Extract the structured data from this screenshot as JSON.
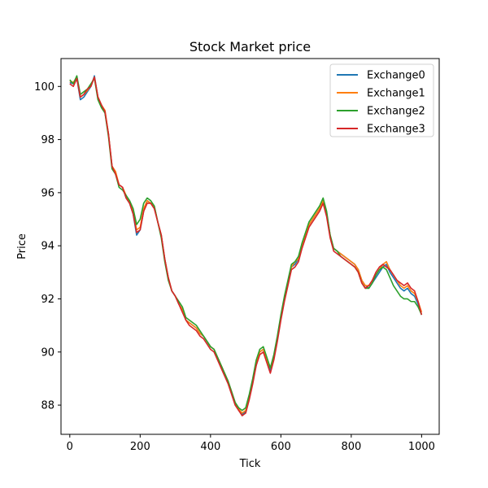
{
  "chart_data": {
    "type": "line",
    "title": "Stock Market price",
    "xlabel": "Tick",
    "ylabel": "Price",
    "xlim": [
      -25,
      1050
    ],
    "ylim": [
      86.9,
      101.05
    ],
    "xticks": [
      0,
      200,
      400,
      600,
      800,
      1000
    ],
    "yticks": [
      88,
      90,
      92,
      94,
      96,
      98,
      100
    ],
    "grid": false,
    "legend_position": "top-right",
    "x": [
      0,
      10,
      20,
      30,
      40,
      50,
      60,
      70,
      80,
      90,
      100,
      110,
      120,
      130,
      140,
      150,
      160,
      170,
      180,
      190,
      200,
      210,
      220,
      230,
      240,
      250,
      260,
      270,
      280,
      290,
      300,
      310,
      320,
      330,
      340,
      350,
      360,
      370,
      380,
      390,
      400,
      410,
      420,
      430,
      440,
      450,
      460,
      470,
      480,
      490,
      500,
      510,
      520,
      530,
      540,
      550,
      560,
      570,
      580,
      590,
      600,
      610,
      620,
      630,
      640,
      650,
      660,
      670,
      680,
      690,
      700,
      710,
      720,
      730,
      740,
      750,
      760,
      770,
      780,
      790,
      800,
      810,
      820,
      830,
      840,
      850,
      860,
      870,
      880,
      890,
      900,
      910,
      920,
      930,
      940,
      950,
      960,
      970,
      980,
      990,
      1000
    ],
    "series": [
      {
        "name": "Exchange0",
        "color": "#1f77b4",
        "values": [
          100.15,
          100.1,
          100.3,
          99.5,
          99.6,
          99.8,
          100.0,
          100.4,
          99.6,
          99.3,
          99.0,
          98.2,
          97.0,
          96.7,
          96.3,
          96.2,
          95.8,
          95.6,
          95.2,
          94.4,
          94.6,
          95.3,
          95.7,
          95.6,
          95.5,
          94.9,
          94.4,
          93.5,
          92.8,
          92.3,
          92.1,
          91.8,
          91.6,
          91.2,
          91.1,
          91.0,
          90.9,
          90.7,
          90.6,
          90.4,
          90.2,
          90.1,
          89.8,
          89.5,
          89.2,
          88.9,
          88.5,
          88.1,
          87.8,
          87.65,
          87.75,
          88.3,
          88.9,
          89.5,
          90.0,
          90.1,
          89.7,
          89.3,
          89.8,
          90.5,
          91.3,
          92.0,
          92.6,
          93.2,
          93.3,
          93.5,
          94.0,
          94.4,
          94.8,
          95.0,
          95.2,
          95.4,
          95.7,
          95.2,
          94.4,
          93.9,
          93.8,
          93.7,
          93.6,
          93.5,
          93.4,
          93.3,
          93.1,
          92.7,
          92.5,
          92.4,
          92.6,
          92.8,
          93.0,
          93.2,
          93.3,
          93.0,
          92.8,
          92.6,
          92.4,
          92.3,
          92.4,
          92.2,
          92.1,
          91.8,
          91.4
        ]
      },
      {
        "name": "Exchange1",
        "color": "#ff7f0e",
        "values": [
          100.2,
          100.15,
          100.35,
          99.6,
          99.7,
          99.85,
          100.05,
          100.35,
          99.6,
          99.3,
          99.1,
          98.2,
          97.0,
          96.8,
          96.3,
          96.2,
          95.9,
          95.6,
          95.3,
          94.6,
          94.7,
          95.4,
          95.7,
          95.6,
          95.5,
          94.9,
          94.4,
          93.5,
          92.8,
          92.3,
          92.1,
          91.8,
          91.6,
          91.2,
          91.1,
          91.0,
          90.9,
          90.7,
          90.6,
          90.4,
          90.2,
          90.1,
          89.8,
          89.5,
          89.2,
          88.9,
          88.5,
          88.1,
          87.85,
          87.7,
          87.8,
          88.3,
          88.9,
          89.6,
          90.0,
          90.1,
          89.7,
          89.4,
          89.8,
          90.5,
          91.3,
          92.0,
          92.6,
          93.2,
          93.4,
          93.5,
          94.0,
          94.4,
          94.8,
          95.0,
          95.2,
          95.4,
          95.7,
          95.2,
          94.4,
          93.9,
          93.8,
          93.7,
          93.6,
          93.5,
          93.4,
          93.3,
          93.1,
          92.7,
          92.5,
          92.5,
          92.7,
          92.9,
          93.1,
          93.3,
          93.4,
          93.1,
          92.9,
          92.7,
          92.5,
          92.4,
          92.5,
          92.3,
          92.2,
          91.9,
          91.5
        ]
      },
      {
        "name": "Exchange2",
        "color": "#2ca02c",
        "values": [
          100.25,
          100.1,
          100.4,
          99.7,
          99.8,
          99.9,
          100.1,
          100.3,
          99.5,
          99.2,
          99.0,
          98.1,
          96.9,
          96.7,
          96.2,
          96.1,
          95.9,
          95.7,
          95.4,
          94.8,
          95.0,
          95.6,
          95.8,
          95.7,
          95.5,
          94.9,
          94.3,
          93.4,
          92.7,
          92.3,
          92.1,
          91.9,
          91.7,
          91.3,
          91.2,
          91.1,
          91.0,
          90.8,
          90.6,
          90.4,
          90.2,
          90.1,
          89.8,
          89.5,
          89.2,
          88.9,
          88.5,
          88.1,
          87.9,
          87.8,
          87.9,
          88.4,
          89.0,
          89.7,
          90.1,
          90.2,
          89.8,
          89.4,
          89.9,
          90.6,
          91.4,
          92.1,
          92.7,
          93.3,
          93.4,
          93.6,
          94.1,
          94.5,
          94.9,
          95.1,
          95.3,
          95.5,
          95.8,
          95.3,
          94.4,
          93.9,
          93.8,
          93.6,
          93.5,
          93.4,
          93.3,
          93.2,
          93.0,
          92.6,
          92.4,
          92.4,
          92.6,
          92.9,
          93.1,
          93.2,
          93.1,
          92.8,
          92.5,
          92.3,
          92.1,
          92.0,
          92.0,
          91.9,
          91.9,
          91.7,
          91.4
        ]
      },
      {
        "name": "Exchange3",
        "color": "#d62728",
        "values": [
          100.1,
          100.0,
          100.3,
          99.6,
          99.7,
          99.9,
          100.0,
          100.35,
          99.6,
          99.3,
          99.05,
          98.2,
          97.0,
          96.7,
          96.3,
          96.2,
          95.8,
          95.6,
          95.2,
          94.5,
          94.6,
          95.3,
          95.6,
          95.6,
          95.4,
          94.9,
          94.4,
          93.5,
          92.8,
          92.3,
          92.1,
          91.8,
          91.5,
          91.2,
          91.0,
          90.9,
          90.8,
          90.6,
          90.5,
          90.3,
          90.1,
          90.0,
          89.7,
          89.4,
          89.1,
          88.8,
          88.4,
          88.0,
          87.8,
          87.6,
          87.7,
          88.2,
          88.8,
          89.5,
          89.9,
          90.0,
          89.6,
          89.2,
          89.7,
          90.4,
          91.2,
          91.9,
          92.5,
          93.1,
          93.2,
          93.4,
          93.9,
          94.3,
          94.7,
          94.9,
          95.1,
          95.3,
          95.6,
          95.1,
          94.3,
          93.8,
          93.7,
          93.6,
          93.5,
          93.4,
          93.3,
          93.2,
          93.0,
          92.6,
          92.4,
          92.5,
          92.7,
          93.0,
          93.2,
          93.3,
          93.2,
          93.1,
          92.9,
          92.7,
          92.6,
          92.5,
          92.6,
          92.4,
          92.3,
          91.9,
          91.4
        ]
      }
    ]
  }
}
